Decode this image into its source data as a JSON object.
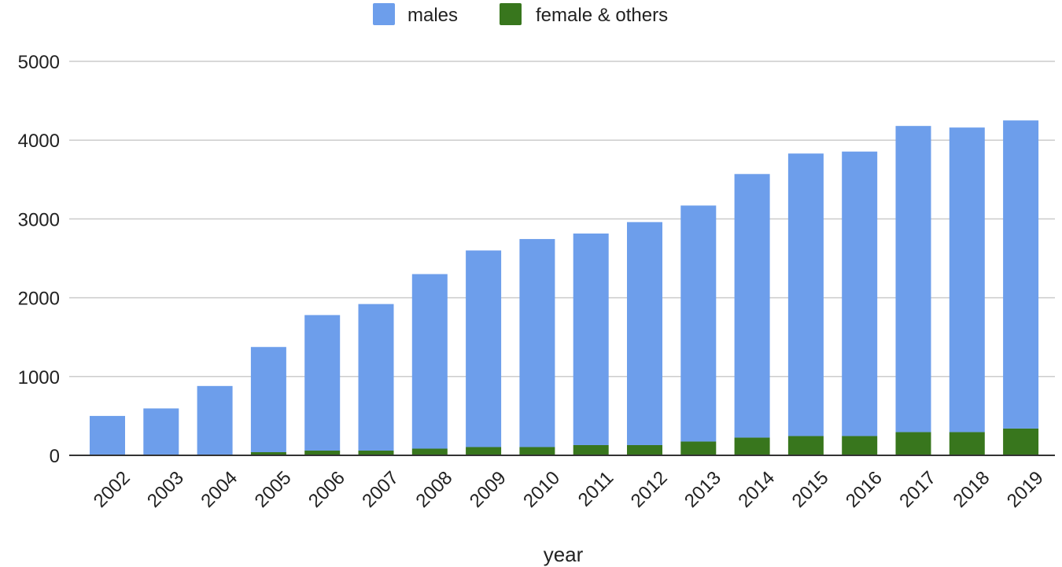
{
  "chart_data": {
    "type": "bar",
    "stacked": true,
    "title": "",
    "xlabel": "year",
    "ylabel": "",
    "ylim": [
      0,
      5000
    ],
    "yticks": [
      0,
      1000,
      2000,
      3000,
      4000,
      5000
    ],
    "grid": true,
    "legend_position": "top",
    "categories": [
      "2002",
      "2003",
      "2004",
      "2005",
      "2006",
      "2007",
      "2008",
      "2009",
      "2010",
      "2011",
      "2012",
      "2013",
      "2014",
      "2015",
      "2016",
      "2017",
      "2018",
      "2019"
    ],
    "series": [
      {
        "name": "female & others",
        "color": "#38761d",
        "values": [
          5,
          5,
          10,
          40,
          60,
          60,
          85,
          105,
          105,
          130,
          130,
          175,
          225,
          245,
          245,
          295,
          295,
          340
        ]
      },
      {
        "name": "males",
        "color": "#6d9eeb",
        "values": [
          495,
          590,
          870,
          1335,
          1720,
          1860,
          2215,
          2495,
          2640,
          2685,
          2830,
          2995,
          3345,
          3585,
          3610,
          3885,
          3865,
          3910
        ]
      }
    ],
    "legend": [
      {
        "name": "males",
        "color": "#6d9eeb"
      },
      {
        "name": "female & others",
        "color": "#38761d"
      }
    ]
  }
}
